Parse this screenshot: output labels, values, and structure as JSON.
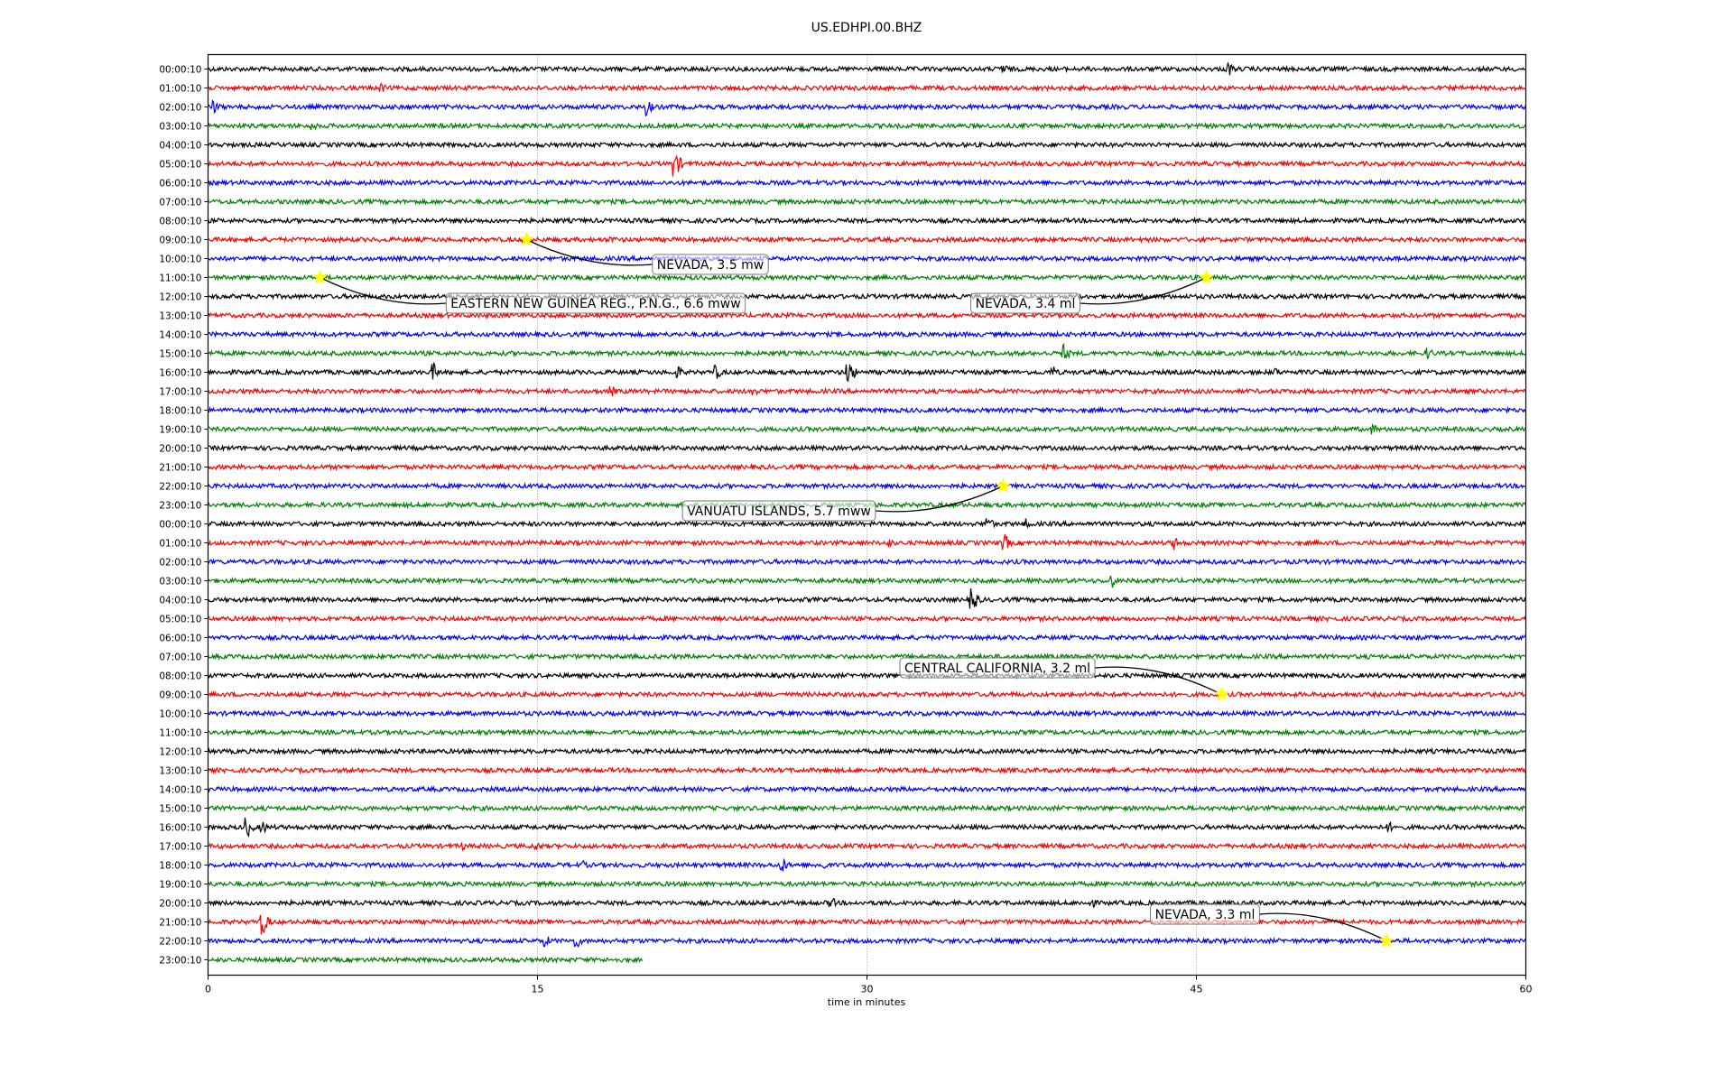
{
  "chart_data": {
    "type": "line",
    "title": "US.EDHPI.00.BHZ",
    "xlabel": "time in minutes",
    "ylabel": "",
    "xlim": [
      0,
      60
    ],
    "xticks": [
      0,
      15,
      30,
      45,
      60
    ],
    "grid": "vertical dotted at 15, 30, 45",
    "row_labels": [
      "00:00:10",
      "01:00:10",
      "02:00:10",
      "03:00:10",
      "04:00:10",
      "05:00:10",
      "06:00:10",
      "07:00:10",
      "08:00:10",
      "09:00:10",
      "10:00:10",
      "11:00:10",
      "12:00:10",
      "13:00:10",
      "14:00:10",
      "15:00:10",
      "16:00:10",
      "17:00:10",
      "18:00:10",
      "19:00:10",
      "20:00:10",
      "21:00:10",
      "22:00:10",
      "23:00:10",
      "00:00:10",
      "01:00:10",
      "02:00:10",
      "03:00:10",
      "04:00:10",
      "05:00:10",
      "06:00:10",
      "07:00:10",
      "08:00:10",
      "09:00:10",
      "10:00:10",
      "11:00:10",
      "12:00:10",
      "13:00:10",
      "14:00:10",
      "15:00:10",
      "16:00:10",
      "17:00:10",
      "18:00:10",
      "19:00:10",
      "20:00:10",
      "21:00:10",
      "22:00:10",
      "23:00:10"
    ],
    "trace_colors": [
      "#000000",
      "#ff0000",
      "#0000ff",
      "#008000"
    ],
    "last_row_end_minute": 19.8,
    "bursts": [
      [
        0,
        36.2,
        8
      ],
      [
        0,
        46.5,
        8
      ],
      [
        1,
        7.9,
        6
      ],
      [
        2,
        0.3,
        8
      ],
      [
        2,
        20,
        10
      ],
      [
        3,
        4.8,
        5
      ],
      [
        5,
        21.3,
        15
      ],
      [
        9,
        18.4,
        4
      ],
      [
        15,
        39,
        10
      ],
      [
        15,
        55.6,
        7
      ],
      [
        16,
        10.3,
        10
      ],
      [
        16,
        21.4,
        8
      ],
      [
        16,
        23.2,
        8
      ],
      [
        16,
        29.2,
        14
      ],
      [
        16,
        38.5,
        7
      ],
      [
        16,
        48.6,
        6
      ],
      [
        17,
        18.4,
        6
      ],
      [
        17,
        24.8,
        7
      ],
      [
        19,
        32.4,
        5
      ],
      [
        19,
        53.1,
        6
      ],
      [
        24,
        35.5,
        10
      ],
      [
        24,
        37.3,
        6
      ],
      [
        25,
        31,
        6
      ],
      [
        25,
        36.3,
        10
      ],
      [
        25,
        44,
        8
      ],
      [
        27,
        41.2,
        8
      ],
      [
        28,
        34.8,
        16
      ],
      [
        40,
        1.8,
        12
      ],
      [
        40,
        2.5,
        8
      ],
      [
        40,
        53.8,
        6
      ],
      [
        41,
        11.6,
        5
      ],
      [
        41,
        15,
        5
      ],
      [
        42,
        17.1,
        5
      ],
      [
        42,
        26.2,
        8
      ],
      [
        42,
        28,
        7
      ],
      [
        44,
        28.4,
        7
      ],
      [
        44,
        40.3,
        5
      ],
      [
        45,
        2.5,
        16
      ],
      [
        46,
        15.4,
        7
      ],
      [
        46,
        16.8,
        8
      ]
    ],
    "events": [
      {
        "label": "NEVADA, 3.5 mw",
        "row": 9,
        "minute": 14.5
      },
      {
        "label": "EASTERN NEW GUINEA REG., P.N.G., 6.6 mww",
        "row": 11,
        "minute": 5.1
      },
      {
        "label": "NEVADA, 3.4 ml",
        "row": 11,
        "minute": 45.45
      },
      {
        "label": "VANUATU ISLANDS, 5.7 mww",
        "row": 22,
        "minute": 36.2
      },
      {
        "label": "CENTRAL CALIFORNIA, 3.2 ml",
        "row": 33,
        "minute": 46.15
      },
      {
        "label": "NEVADA, 3.3 ml",
        "row": 46,
        "minute": 53.65
      }
    ],
    "marker_color": "#ffff00"
  }
}
